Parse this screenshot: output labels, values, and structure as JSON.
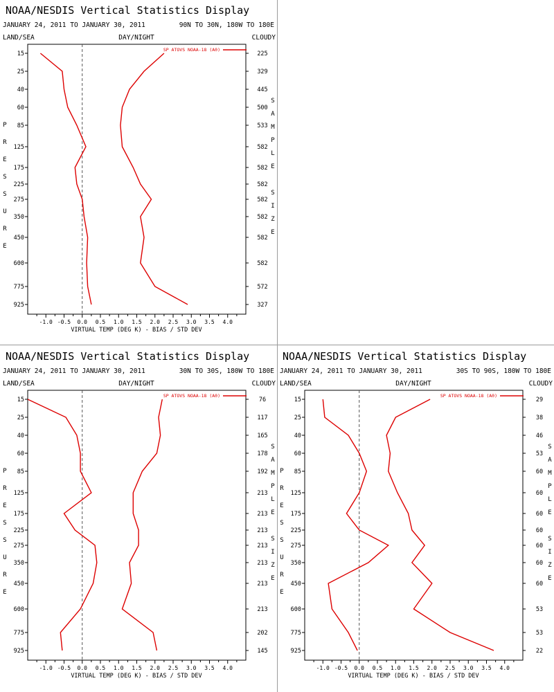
{
  "panels": [
    {
      "title": "NOAA/NESDIS Vertical Statistics Display",
      "date_range": "JANUARY 24, 2011 TO JANUARY 30, 2011",
      "region": "90N TO 30N, 180W TO 180E",
      "left_label": "LAND/SEA",
      "center_label": "DAY/NIGHT",
      "right_label": "CLOUDY",
      "ylabel": "PRESSURE",
      "right_axis_label": "SAMPLE SIZE",
      "xlabel": "VIRTUAL TEMP (DEG K) - BIAS / STD DEV",
      "legend": "SP ATOVS NOAA-18 (A0)",
      "sample_sizes": [
        "225",
        "329",
        "445",
        "500",
        "533",
        "582",
        "582",
        "582",
        "582",
        "582",
        "582",
        "582",
        "572",
        "327"
      ]
    },
    {
      "title": "NOAA/NESDIS Vertical Statistics Display",
      "date_range": "JANUARY 24, 2011 TO JANUARY 30, 2011",
      "region": "30N TO 30S, 180W TO 180E",
      "left_label": "LAND/SEA",
      "center_label": "DAY/NIGHT",
      "right_label": "CLOUDY",
      "ylabel": "PRESSURE",
      "right_axis_label": "SAMPLE SIZE",
      "xlabel": "VIRTUAL TEMP (DEG K) - BIAS / STD DEV",
      "legend": "SP ATOVS NOAA-18 (A0)",
      "sample_sizes": [
        "76",
        "117",
        "165",
        "178",
        "192",
        "213",
        "213",
        "213",
        "213",
        "213",
        "213",
        "213",
        "202",
        "145"
      ]
    },
    {
      "title": "NOAA/NESDIS Vertical Statistics Display",
      "date_range": "JANUARY 24, 2011 TO JANUARY 30, 2011",
      "region": "30S TO 90S, 180W TO 180E",
      "left_label": "LAND/SEA",
      "center_label": "DAY/NIGHT",
      "right_label": "CLOUDY",
      "ylabel": "PRESSURE",
      "right_axis_label": "SAMPLE SIZE",
      "xlabel": "VIRTUAL TEMP (DEG K) - BIAS / STD DEV",
      "legend": "SP ATOVS NOAA-18 (A0)",
      "sample_sizes": [
        "29",
        "38",
        "46",
        "53",
        "60",
        "60",
        "60",
        "60",
        "60",
        "60",
        "60",
        "53",
        "53",
        "22"
      ]
    }
  ],
  "chart_data": [
    {
      "type": "line",
      "region": "90N TO 30N, 180W TO 180E",
      "levels": [
        "15",
        "25",
        "40",
        "60",
        "85",
        "125",
        "175",
        "225",
        "275",
        "350",
        "450",
        "600",
        "775",
        "925"
      ],
      "x_ticks": [
        "-1.0",
        "-0.5",
        "0.0",
        "0.5",
        "1.0",
        "1.5",
        "2.0",
        "2.5",
        "3.0",
        "3.5",
        "4.0"
      ],
      "xlim": [
        -1.5,
        4.5
      ],
      "line_color": "#dd0000",
      "series": [
        {
          "name": "BIAS",
          "values": [
            -1.15,
            -0.55,
            -0.5,
            -0.4,
            -0.15,
            0.1,
            -0.2,
            -0.15,
            0.0,
            0.05,
            0.15,
            0.12,
            0.15,
            0.25
          ]
        },
        {
          "name": "STD DEV",
          "values": [
            2.25,
            1.7,
            1.3,
            1.1,
            1.05,
            1.1,
            1.4,
            1.6,
            1.9,
            1.6,
            1.7,
            1.6,
            2.0,
            2.9
          ]
        }
      ]
    },
    {
      "type": "line",
      "region": "30N TO 30S, 180W TO 180E",
      "levels": [
        "15",
        "25",
        "40",
        "60",
        "85",
        "125",
        "175",
        "225",
        "275",
        "350",
        "450",
        "600",
        "775",
        "925"
      ],
      "x_ticks": [
        "-1.0",
        "-0.5",
        "0.0",
        "0.5",
        "1.0",
        "1.5",
        "2.0",
        "2.5",
        "3.0",
        "3.5",
        "4.0"
      ],
      "xlim": [
        -1.5,
        4.5
      ],
      "line_color": "#dd0000",
      "series": [
        {
          "name": "BIAS",
          "values": [
            -1.5,
            -0.45,
            -0.15,
            -0.05,
            -0.05,
            0.25,
            -0.5,
            -0.2,
            0.35,
            0.4,
            0.3,
            -0.05,
            -0.6,
            -0.55
          ]
        },
        {
          "name": "STD DEV",
          "values": [
            2.2,
            2.1,
            2.15,
            2.05,
            1.65,
            1.4,
            1.4,
            1.55,
            1.55,
            1.3,
            1.35,
            1.1,
            1.95,
            2.05
          ]
        }
      ]
    },
    {
      "type": "line",
      "region": "30S TO 90S, 180W TO 180E",
      "levels": [
        "15",
        "25",
        "40",
        "60",
        "85",
        "125",
        "175",
        "225",
        "275",
        "350",
        "450",
        "600",
        "775",
        "925"
      ],
      "x_ticks": [
        "-1.0",
        "-0.5",
        "0.0",
        "0.5",
        "1.0",
        "1.5",
        "2.0",
        "2.5",
        "3.0",
        "3.5",
        "4.0"
      ],
      "xlim": [
        -1.5,
        4.5
      ],
      "line_color": "#dd0000",
      "series": [
        {
          "name": "BIAS",
          "values": [
            -1.0,
            -0.95,
            -0.3,
            0.0,
            0.2,
            0.0,
            -0.35,
            0.0,
            0.8,
            0.25,
            -0.85,
            -0.75,
            -0.3,
            -0.05
          ]
        },
        {
          "name": "STD DEV",
          "values": [
            1.95,
            1.0,
            0.75,
            0.85,
            0.8,
            1.05,
            1.35,
            1.45,
            1.8,
            1.45,
            2.0,
            1.5,
            2.5,
            3.7
          ]
        }
      ]
    }
  ]
}
